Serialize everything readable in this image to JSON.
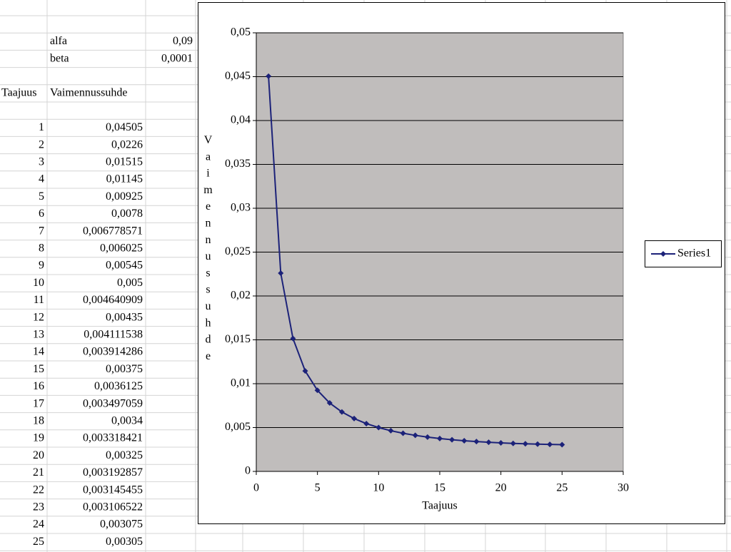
{
  "params": [
    [
      "alfa",
      "0,09"
    ],
    [
      "beta",
      "0,0001"
    ]
  ],
  "table": {
    "header": [
      "Taajuus",
      "Vaimennussuhde"
    ],
    "rows": [
      [
        1,
        "0,04505"
      ],
      [
        2,
        "0,0226"
      ],
      [
        3,
        "0,01515"
      ],
      [
        4,
        "0,01145"
      ],
      [
        5,
        "0,00925"
      ],
      [
        6,
        "0,0078"
      ],
      [
        7,
        "0,006778571"
      ],
      [
        8,
        "0,006025"
      ],
      [
        9,
        "0,00545"
      ],
      [
        10,
        "0,005"
      ],
      [
        11,
        "0,004640909"
      ],
      [
        12,
        "0,00435"
      ],
      [
        13,
        "0,004111538"
      ],
      [
        14,
        "0,003914286"
      ],
      [
        15,
        "0,00375"
      ],
      [
        16,
        "0,0036125"
      ],
      [
        17,
        "0,003497059"
      ],
      [
        18,
        "0,0034"
      ],
      [
        19,
        "0,003318421"
      ],
      [
        20,
        "0,00325"
      ],
      [
        21,
        "0,003192857"
      ],
      [
        22,
        "0,003145455"
      ],
      [
        23,
        "0,003106522"
      ],
      [
        24,
        "0,003075"
      ],
      [
        25,
        "0,00305"
      ]
    ]
  },
  "chart_data": {
    "type": "line",
    "x_label": "Taajuus",
    "y_label": "Vaimennussuhde",
    "x": [
      1,
      2,
      3,
      4,
      5,
      6,
      7,
      8,
      9,
      10,
      11,
      12,
      13,
      14,
      15,
      16,
      17,
      18,
      19,
      20,
      21,
      22,
      23,
      24,
      25
    ],
    "series": [
      {
        "name": "Series1",
        "color": "#1c2279",
        "values": [
          0.04505,
          0.0226,
          0.01515,
          0.01145,
          0.00925,
          0.0078,
          0.006778571,
          0.006025,
          0.00545,
          0.005,
          0.004640909,
          0.00435,
          0.004111538,
          0.003914286,
          0.00375,
          0.0036125,
          0.003497059,
          0.0034,
          0.003318421,
          0.00325,
          0.003192857,
          0.003145455,
          0.003106522,
          0.003075,
          0.00305
        ]
      }
    ],
    "xlim": [
      0,
      30
    ],
    "xticks": [
      0,
      5,
      10,
      15,
      20,
      25,
      30
    ],
    "ylim": [
      0,
      0.05
    ],
    "yticks": [
      0,
      {
        "value": 0.005,
        "label": "0,005"
      },
      {
        "value": 0.01,
        "label": "0,01"
      },
      {
        "value": 0.015,
        "label": "0,015"
      },
      {
        "value": 0.02,
        "label": "0,02"
      },
      {
        "value": 0.025,
        "label": "0,025"
      },
      {
        "value": 0.03,
        "label": "0,03"
      },
      {
        "value": 0.035,
        "label": "0,035"
      },
      {
        "value": 0.04,
        "label": "0,04"
      },
      {
        "value": 0.045,
        "label": "0,045"
      },
      {
        "value": 0.05,
        "label": "0,05"
      }
    ],
    "grid": true,
    "plot_background": "#c0bdbc",
    "legend": "right"
  }
}
